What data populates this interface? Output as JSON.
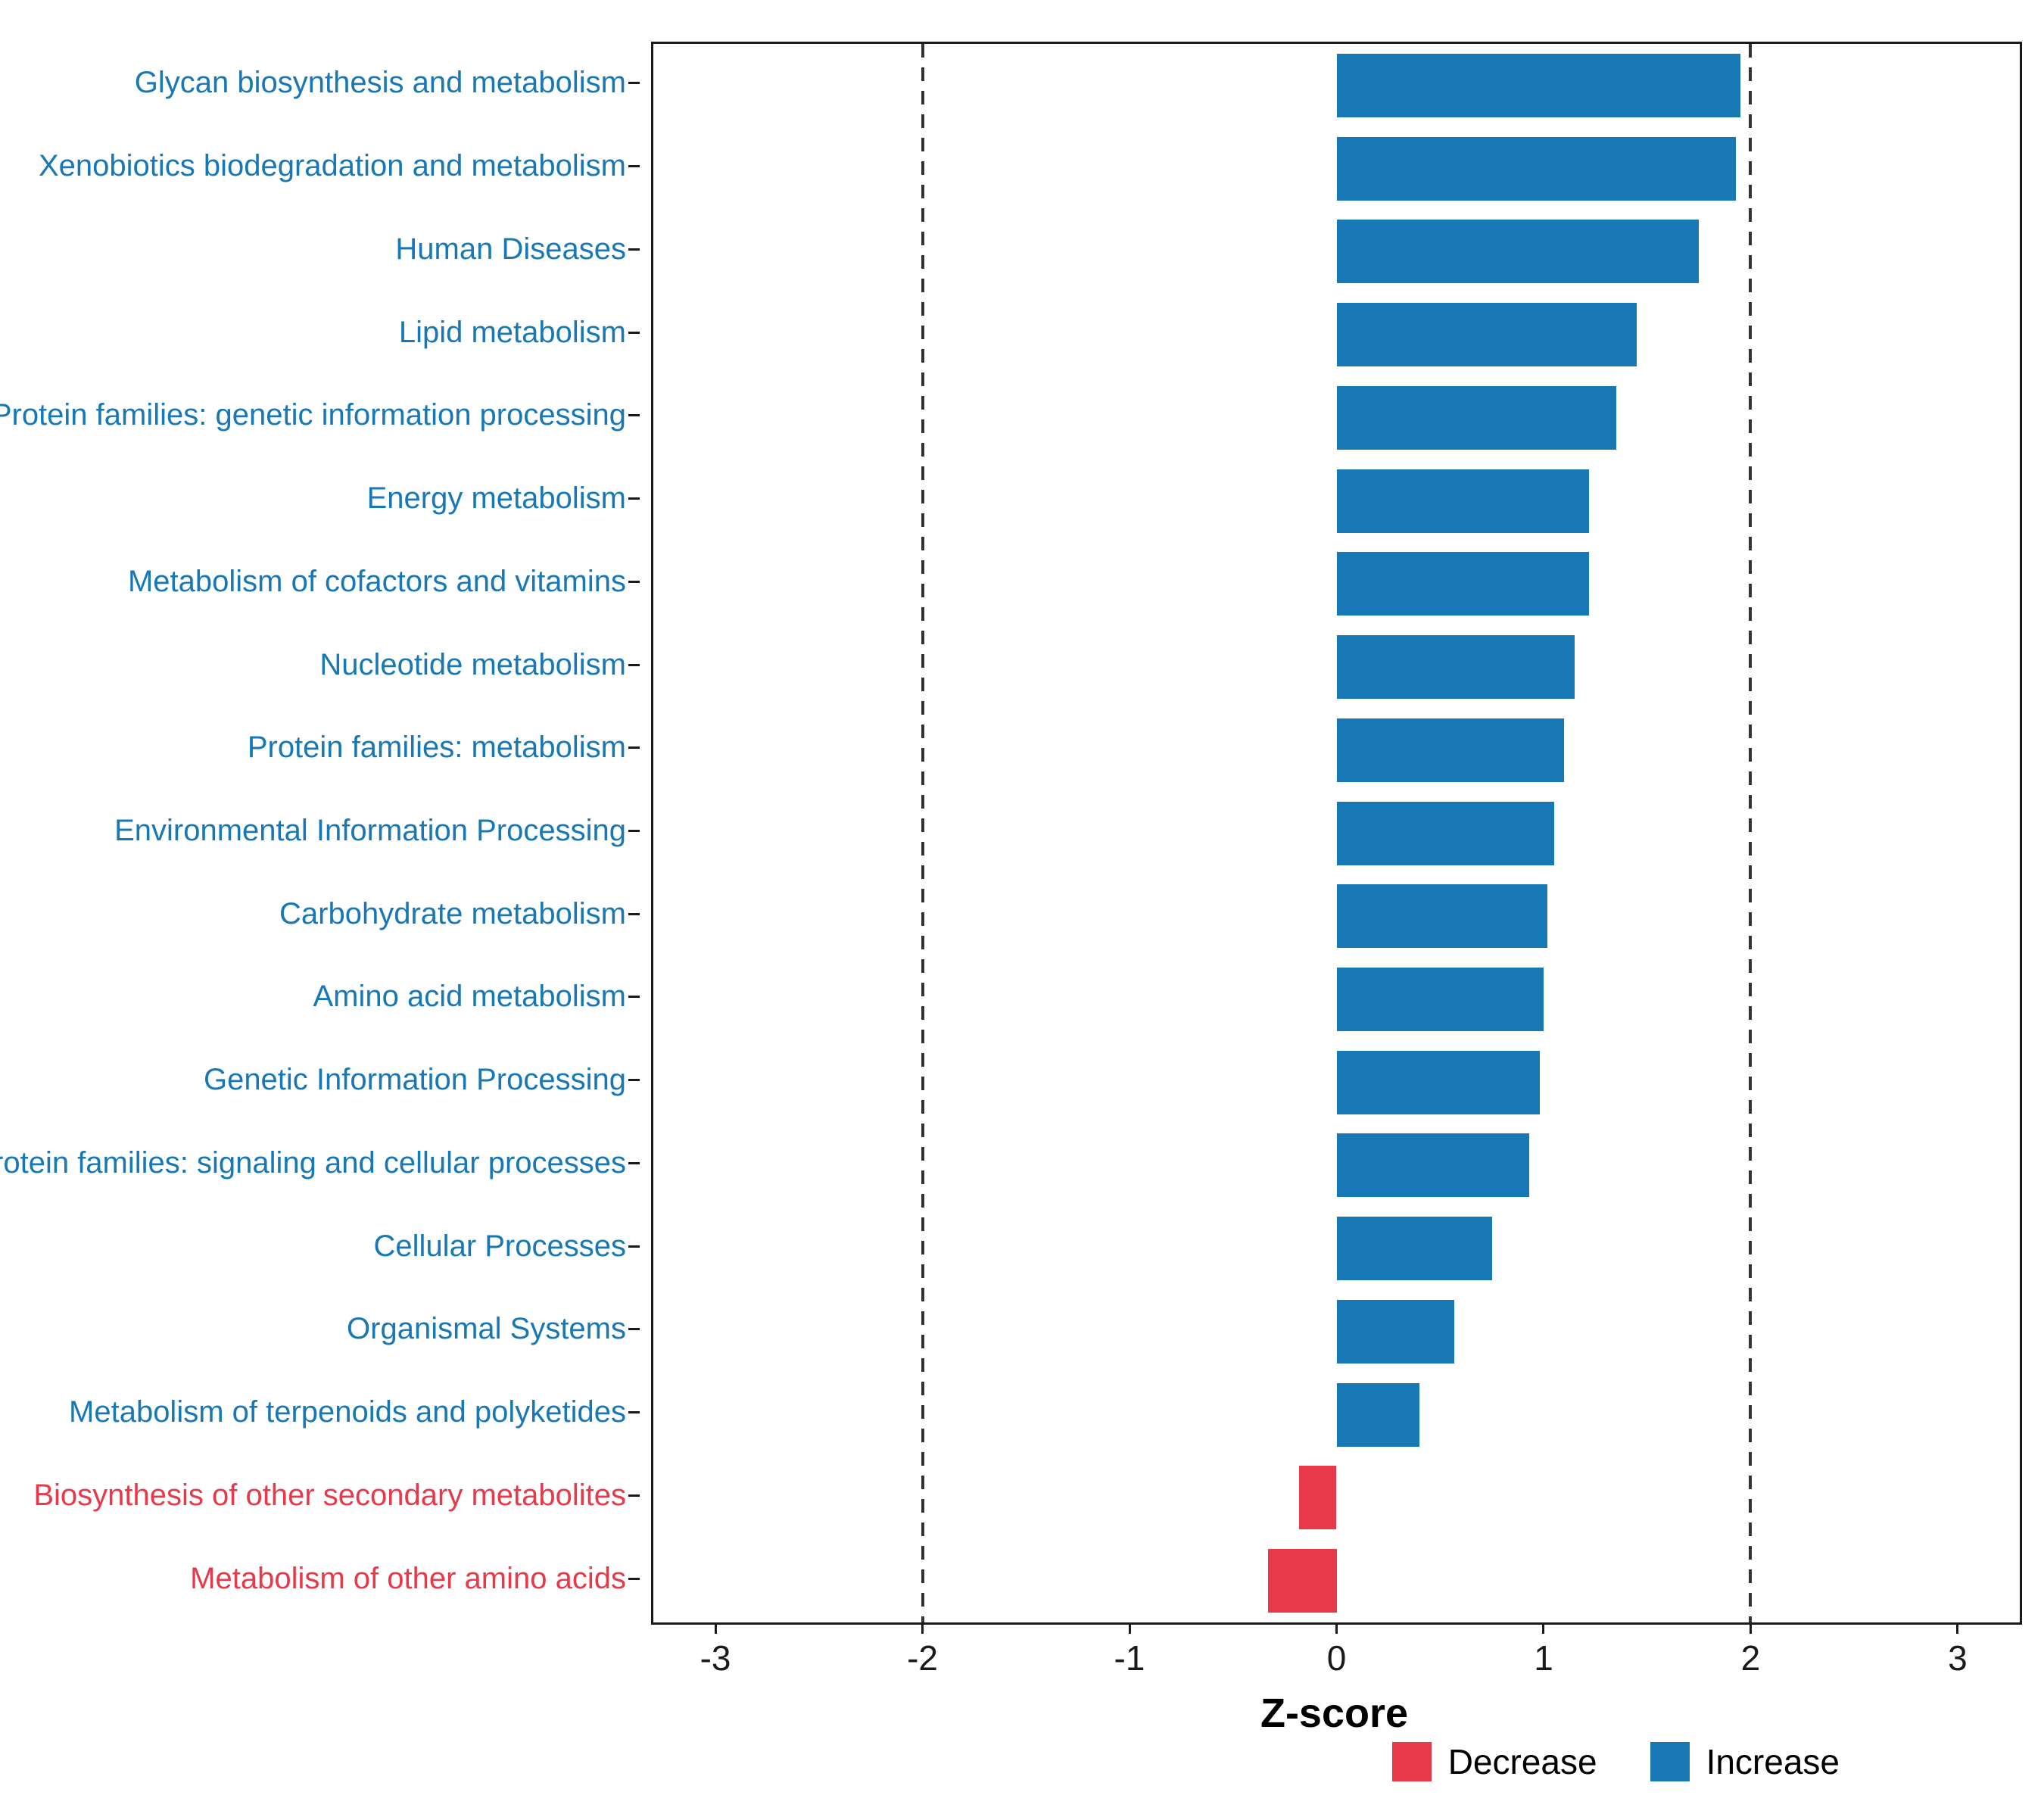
{
  "chart_data": {
    "type": "bar",
    "orientation": "horizontal",
    "title": "",
    "xlabel": "Z-score",
    "x_range": [
      -3.3,
      3.3
    ],
    "x_ticks": [
      "-3",
      "-2",
      "-1",
      "0",
      "1",
      "2",
      "3"
    ],
    "x_tick_values": [
      -3,
      -2,
      -1,
      0,
      1,
      2,
      3
    ],
    "reference_lines": [
      -2,
      2
    ],
    "grid": false,
    "legend_position": "bottom-right",
    "categories": [
      "Glycan biosynthesis and metabolism",
      "Xenobiotics biodegradation and metabolism",
      "Human Diseases",
      "Lipid metabolism",
      "Protein families: genetic information processing",
      "Energy metabolism",
      "Metabolism of cofactors and vitamins",
      "Nucleotide metabolism",
      "Protein families: metabolism",
      "Environmental Information Processing",
      "Carbohydrate metabolism",
      "Amino acid metabolism",
      "Genetic Information Processing",
      "Protein families: signaling and cellular processes",
      "Cellular Processes",
      "Organismal Systems",
      "Metabolism of terpenoids and polyketides",
      "Biosynthesis of other secondary metabolites",
      "Metabolism of other amino acids"
    ],
    "values": [
      1.95,
      1.93,
      1.75,
      1.45,
      1.35,
      1.22,
      1.22,
      1.15,
      1.1,
      1.05,
      1.02,
      1.0,
      0.98,
      0.93,
      0.75,
      0.57,
      0.4,
      -0.18,
      -0.33
    ],
    "groups": [
      "increase",
      "increase",
      "increase",
      "increase",
      "increase",
      "increase",
      "increase",
      "increase",
      "increase",
      "increase",
      "increase",
      "increase",
      "increase",
      "increase",
      "increase",
      "increase",
      "increase",
      "decrease",
      "decrease"
    ],
    "colors": {
      "increase": "#1778b5",
      "decrease": "#e8394a"
    },
    "legend": [
      {
        "label": "Decrease",
        "key": "decrease"
      },
      {
        "label": "Increase",
        "key": "increase"
      }
    ]
  }
}
